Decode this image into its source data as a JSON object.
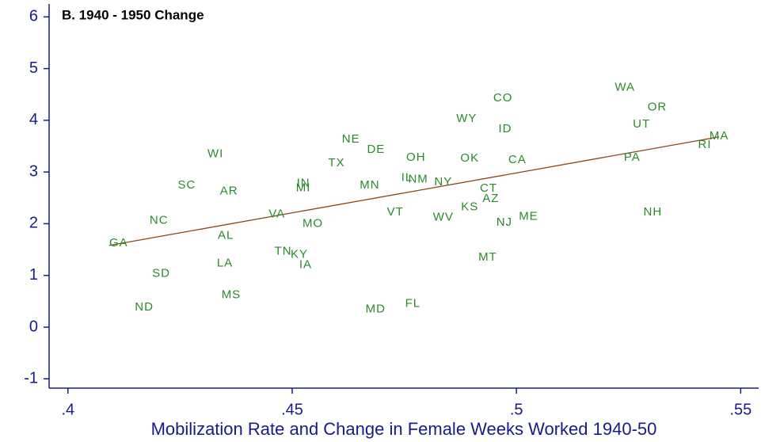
{
  "chart_data": {
    "type": "scatter",
    "title": "B. 1940 - 1950 Change",
    "x_label": "Mobilization Rate and Change in Female Weeks Worked 1940-50",
    "xlim": [
      0.3958,
      0.554
    ],
    "ylim": [
      -1.18,
      6.25
    ],
    "xticks": [
      {
        "value": 0.4,
        "label": ".4"
      },
      {
        "value": 0.45,
        "label": ".45"
      },
      {
        "value": 0.5,
        "label": ".5"
      },
      {
        "value": 0.55,
        "label": ".55"
      }
    ],
    "yticks": [
      -1,
      0,
      1,
      2,
      3,
      4,
      5,
      6
    ],
    "series": [
      {
        "color": "#2a8a2a",
        "labels": [
          "GA",
          "NC",
          "SD",
          "ND",
          "SC",
          "WI",
          "AR",
          "AL",
          "LA",
          "MS",
          "VA",
          "TN",
          "KY",
          "IA",
          "IN",
          "MI",
          "MO",
          "NE",
          "DE",
          "TX",
          "MN",
          "MD",
          "VT",
          "FL",
          "OH",
          "IL",
          "NM",
          "NY",
          "WV",
          "KS",
          "AZ",
          "CT",
          "OK",
          "WY",
          "CO",
          "ID",
          "CA",
          "NJ",
          "ME",
          "MT",
          "WA",
          "OR",
          "UT",
          "PA",
          "NH",
          "RI",
          "MA"
        ],
        "x": [
          0.4113,
          0.4203,
          0.4208,
          0.417,
          0.4265,
          0.4329,
          0.4359,
          0.4352,
          0.435,
          0.4364,
          0.4466,
          0.448,
          0.4516,
          0.453,
          0.4525,
          0.4525,
          0.4546,
          0.4631,
          0.4687,
          0.4599,
          0.4673,
          0.4686,
          0.473,
          0.4769,
          0.4776,
          0.4756,
          0.4781,
          0.4837,
          0.4837,
          0.4896,
          0.4943,
          0.4938,
          0.4896,
          0.4889,
          0.497,
          0.4975,
          0.5002,
          0.4973,
          0.5027,
          0.4936,
          0.5242,
          0.5314,
          0.5279,
          0.5258,
          0.5304,
          0.542,
          0.5452
        ],
        "values": [
          1.62,
          2.06,
          1.03,
          0.38,
          2.74,
          3.35,
          2.63,
          1.77,
          1.23,
          0.62,
          2.18,
          1.46,
          1.4,
          1.2,
          2.78,
          2.69,
          2.0,
          3.63,
          3.43,
          3.17,
          2.74,
          0.34,
          2.22,
          0.45,
          3.28,
          2.89,
          2.86,
          2.8,
          2.12,
          2.32,
          2.48,
          2.68,
          3.26,
          4.03,
          4.43,
          3.83,
          3.23,
          2.02,
          2.14,
          1.35,
          4.63,
          4.25,
          3.92,
          3.28,
          2.22,
          3.52,
          3.69
        ]
      }
    ],
    "fit_line": {
      "color": "#8b4513",
      "x": [
        0.4092,
        0.5452
      ],
      "values": [
        1.58,
        3.68
      ]
    },
    "axis_color": "#1a1a8a"
  }
}
